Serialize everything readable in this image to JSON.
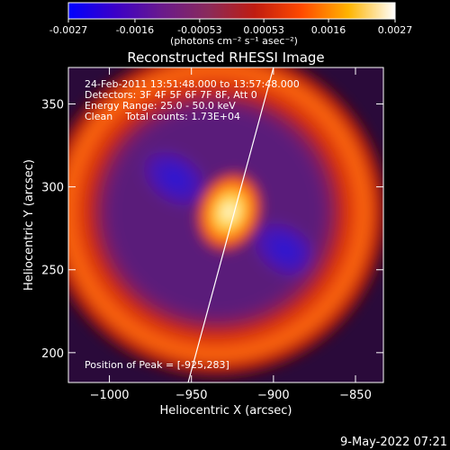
{
  "colorbar": {
    "ticks": [
      "-0.0027",
      "-0.0016",
      "-0.00053",
      "0.00053",
      "0.0016",
      "0.0027"
    ],
    "tick_values": [
      -0.0027,
      -0.0016,
      -0.00053,
      0.00053,
      0.0016,
      0.0027
    ],
    "range": [
      -0.0027,
      0.0027
    ],
    "colors": [
      "#0000ff",
      "#3b00c8",
      "#6a1a8c",
      "#8a2a5a",
      "#c01c10",
      "#ff4a00",
      "#ffb400",
      "#ffffff"
    ]
  },
  "chart_data": {
    "type": "heatmap",
    "title": "Reconstructed RHESSI Image",
    "xlabel": "Heliocentric X (arcsec)",
    "ylabel": "Heliocentric Y (arcsec)",
    "xlim": [
      -1025,
      -833
    ],
    "ylim": [
      182,
      372
    ],
    "x_ticks": [
      -1000,
      -950,
      -900,
      -850
    ],
    "y_ticks": [
      200,
      250,
      300,
      350
    ],
    "x_tick_labels": [
      "−1000",
      "−950",
      "−900",
      "−850"
    ],
    "y_tick_labels": [
      "200",
      "250",
      "300",
      "350"
    ],
    "peak": {
      "x": -925,
      "y": 283,
      "value": 0.0027
    },
    "features": [
      {
        "kind": "positive-core",
        "x": -927,
        "y": 285,
        "value": 0.0027
      },
      {
        "kind": "negative-lobe",
        "x": -960,
        "y": 305,
        "value": -0.0016
      },
      {
        "kind": "negative-lobe",
        "x": -893,
        "y": 262,
        "value": -0.0016
      },
      {
        "kind": "positive-ring",
        "x": -935,
        "y": 285,
        "value": 0.0016
      }
    ],
    "limb_line": [
      [
        -952,
        182
      ],
      [
        -900,
        372
      ]
    ],
    "info_lines": [
      "24-Feb-2011 13:51:48.000 to 13:57:48.000",
      "Detectors: 3F 4F 5F 6F 7F 8F, Att 0",
      "Energy Range: 25.0 - 50.0 keV",
      "Clean    Total counts: 1.73E+04"
    ],
    "peak_label": "Position of Peak = [-925,283]"
  },
  "colorbar_units": "(photons cm⁻² s⁻¹ asec⁻²)",
  "footer_date": "9-May-2022 07:21"
}
